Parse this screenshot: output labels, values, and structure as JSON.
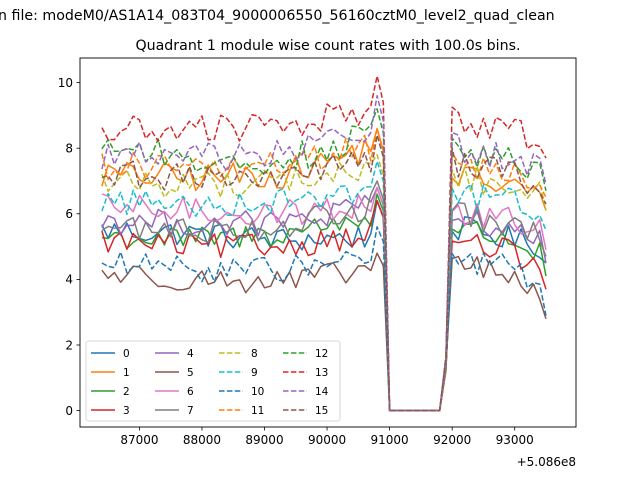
{
  "chart_data": {
    "type": "line",
    "suptitle": "n file: modeM0/AS1A14_083T04_9000006550_56160cztM0_level2_quad_clean",
    "title": "Quadrant 1 module wise count rates with 100.0s bins.",
    "xlabel": "",
    "ylabel": "",
    "x_offset_label": "+5.086e8",
    "xlim": [
      86050,
      93980
    ],
    "ylim": [
      -0.5,
      10.75
    ],
    "xticks": [
      87000,
      88000,
      89000,
      90000,
      91000,
      92000,
      93000
    ],
    "xtick_labels": [
      "87000",
      "88000",
      "89000",
      "90000",
      "91000",
      "92000",
      "93000"
    ],
    "yticks": [
      0,
      2,
      4,
      6,
      8,
      10
    ],
    "ytick_labels": [
      "0",
      "2",
      "4",
      "6",
      "8",
      "10"
    ],
    "grid": false,
    "legend_location": "lower-left",
    "segments": [
      {
        "x_start": 86400,
        "x_end": 90900,
        "step": 100
      },
      {
        "x_start": 91000,
        "x_end": 91800,
        "step": 100
      },
      {
        "x_start": 91900,
        "x_end": 93500,
        "step": 100
      }
    ],
    "gap_value": 0,
    "series": [
      {
        "name": "0",
        "color": "#1f77b4",
        "dash": "solid",
        "seg1": [
          5.5,
          5.4,
          5.2,
          5.3
        ],
        "peak": 6.4,
        "seg3": [
          5.6,
          5.4,
          5.2,
          5.0
        ]
      },
      {
        "name": "1",
        "color": "#ff7f0e",
        "dash": "solid",
        "seg1": [
          7.2,
          7.1,
          7.2,
          8.0
        ],
        "peak": 8.6,
        "seg3": [
          7.2,
          7.0,
          6.8,
          6.6
        ]
      },
      {
        "name": "2",
        "color": "#2ca02c",
        "dash": "solid",
        "seg1": [
          5.3,
          5.2,
          5.4,
          5.9
        ],
        "peak": 6.6,
        "seg3": [
          5.6,
          5.4,
          5.2,
          4.6
        ]
      },
      {
        "name": "3",
        "color": "#d62728",
        "dash": "solid",
        "seg1": [
          5.2,
          5.0,
          5.0,
          5.4
        ],
        "peak": 6.4,
        "seg3": [
          5.2,
          5.0,
          4.8,
          4.2
        ]
      },
      {
        "name": "4",
        "color": "#9467bd",
        "dash": "solid",
        "seg1": [
          5.8,
          5.7,
          5.7,
          6.2
        ],
        "peak": 6.8,
        "seg3": [
          5.8,
          5.7,
          5.6,
          5.0
        ]
      },
      {
        "name": "5",
        "color": "#8c564b",
        "dash": "solid",
        "seg1": [
          4.2,
          4.0,
          3.9,
          4.3
        ],
        "peak": 4.8,
        "seg3": [
          4.6,
          4.3,
          4.0,
          3.3
        ]
      },
      {
        "name": "6",
        "color": "#e377c2",
        "dash": "solid",
        "seg1": [
          6.2,
          6.1,
          6.0,
          6.3
        ],
        "peak": 6.8,
        "seg3": [
          6.0,
          5.9,
          5.8,
          5.4
        ]
      },
      {
        "name": "7",
        "color": "#7f7f7f",
        "dash": "solid",
        "seg1": [
          5.6,
          5.5,
          5.6,
          6.2
        ],
        "peak": 7.0,
        "seg3": [
          6.0,
          5.8,
          5.6,
          5.2
        ]
      },
      {
        "name": "8",
        "color": "#bcbd22",
        "dash": "dashed",
        "seg1": [
          7.0,
          6.9,
          7.0,
          7.3
        ],
        "peak": 7.8,
        "seg3": [
          7.2,
          7.0,
          6.8,
          6.6
        ]
      },
      {
        "name": "9",
        "color": "#17becf",
        "dash": "dashed",
        "seg1": [
          6.4,
          6.3,
          6.4,
          6.8
        ],
        "peak": 7.6,
        "seg3": [
          6.6,
          6.5,
          6.4,
          6.0
        ]
      },
      {
        "name": "10",
        "color": "#1f77b4",
        "dash": "dashed",
        "seg1": [
          4.5,
          4.3,
          4.3,
          4.7
        ],
        "peak": 5.6,
        "seg3": [
          4.6,
          4.5,
          4.4,
          3.4
        ]
      },
      {
        "name": "11",
        "color": "#ff7f0e",
        "dash": "dashed",
        "seg1": [
          7.5,
          7.4,
          7.5,
          8.0
        ],
        "peak": 8.6,
        "seg3": [
          7.6,
          7.4,
          7.2,
          7.0
        ]
      },
      {
        "name": "12",
        "color": "#2ca02c",
        "dash": "dashed",
        "seg1": [
          8.2,
          7.6,
          7.6,
          8.4
        ],
        "peak": 9.2,
        "seg3": [
          8.0,
          7.8,
          7.6,
          7.2
        ]
      },
      {
        "name": "13",
        "color": "#d62728",
        "dash": "dashed",
        "seg1": [
          8.5,
          8.6,
          8.6,
          9.2
        ],
        "peak": 10.2,
        "seg3": [
          8.9,
          8.7,
          8.5,
          8.2
        ]
      },
      {
        "name": "14",
        "color": "#9467bd",
        "dash": "dashed",
        "seg1": [
          7.8,
          7.7,
          7.8,
          8.6
        ],
        "peak": 9.6,
        "seg3": [
          8.1,
          7.9,
          7.7,
          7.4
        ]
      },
      {
        "name": "15",
        "color": "#8c564b",
        "dash": "dashed",
        "seg1": [
          7.2,
          7.1,
          7.1,
          7.6
        ],
        "peak": 8.4,
        "seg3": [
          7.6,
          7.4,
          7.2,
          6.8
        ]
      }
    ]
  }
}
